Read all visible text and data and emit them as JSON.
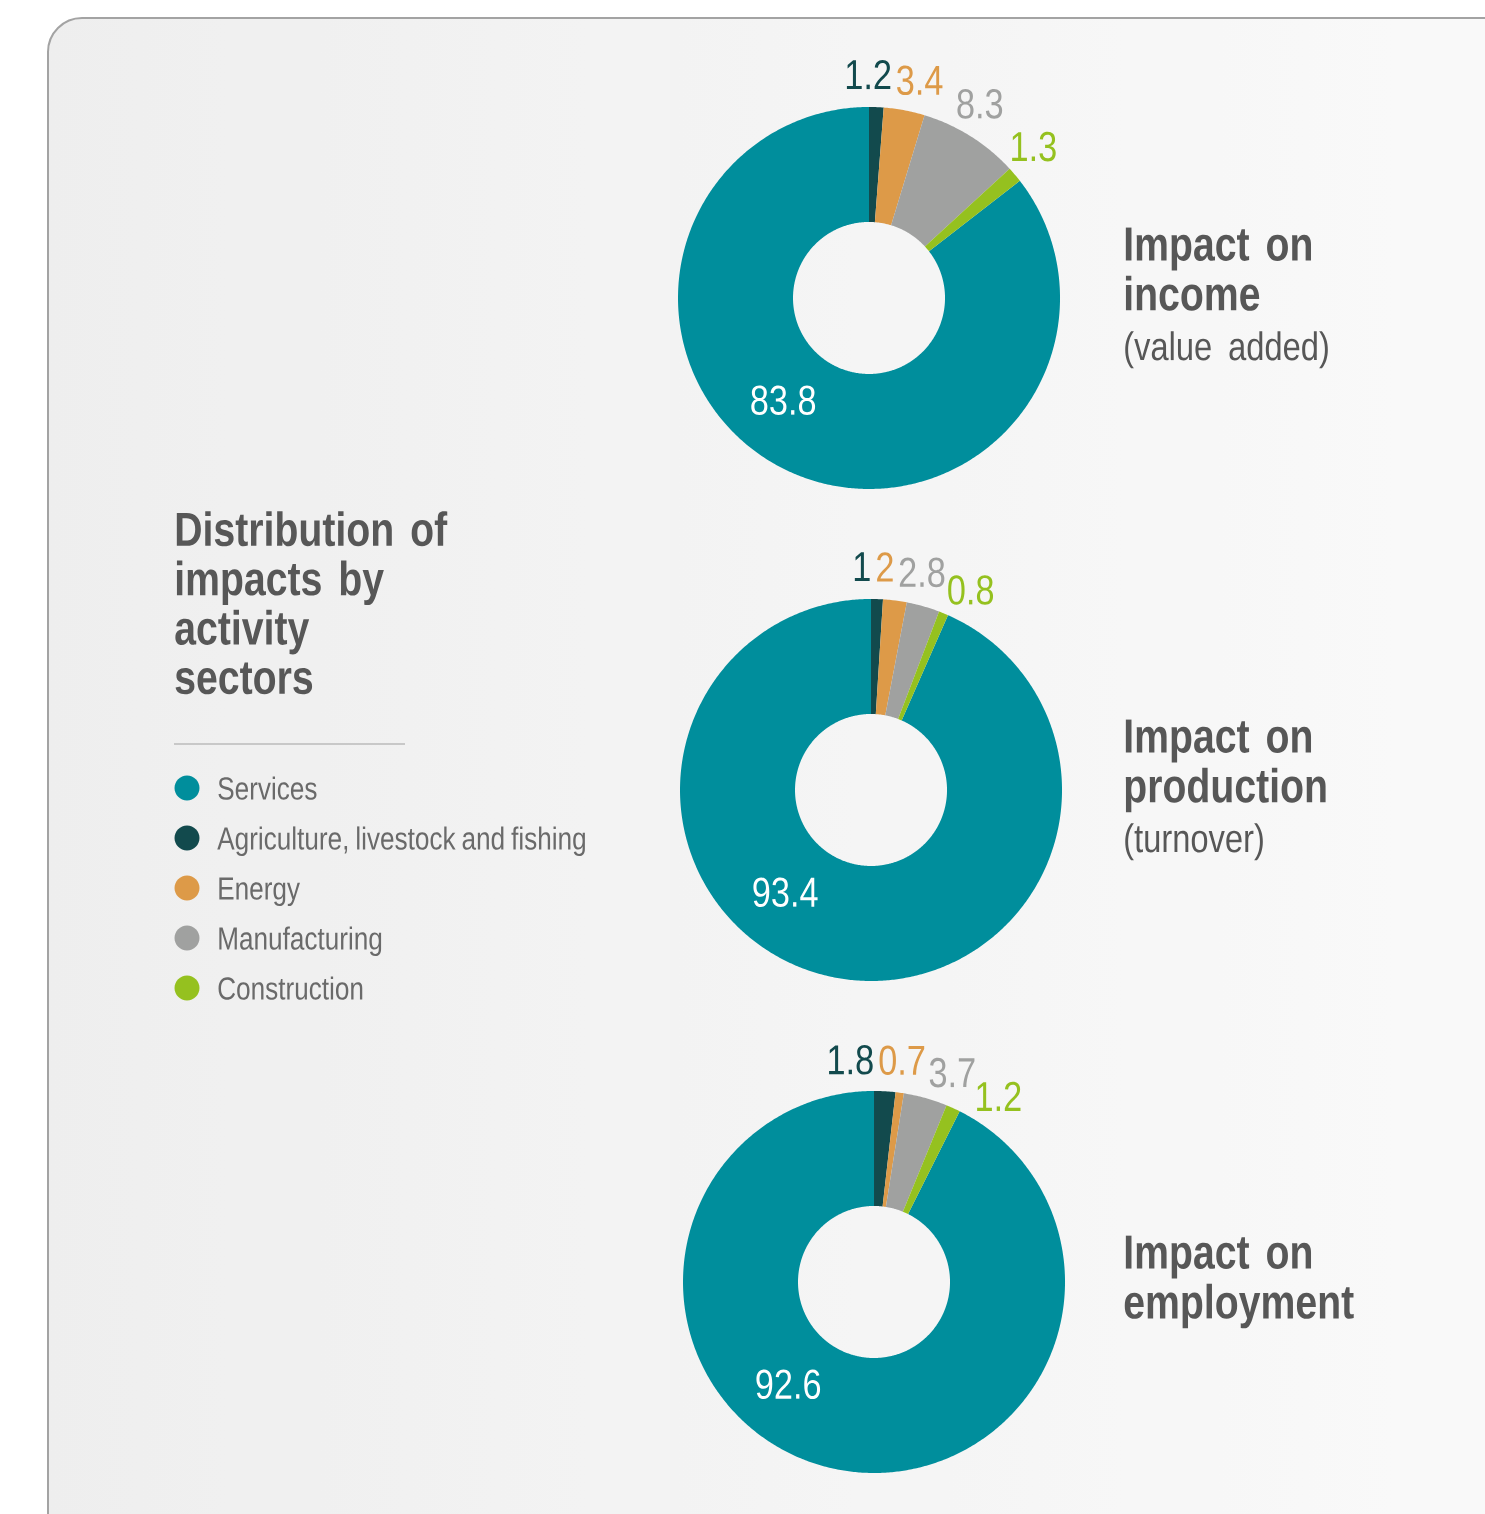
{
  "chart_data": [
    {
      "type": "donut",
      "title": "Impact on income",
      "subtitle": "(value added)",
      "categories": [
        null,
        null,
        null,
        null,
        null
      ],
      "values": [
        83.8,
        1.2,
        3.4,
        8.3,
        1.3
      ],
      "colors": [
        "#008e9c",
        "#124a4d",
        "#dd9a48",
        "#a0a1a0",
        "#95c11f"
      ],
      "data_labels": true
    },
    {
      "type": "donut",
      "title": "Impact on production",
      "subtitle": "(turnover)",
      "categories": [
        "Services",
        "Agriculture, livestock and fishing",
        "Energy",
        "Manufacturing",
        "Construction"
      ],
      "values": [
        93.4,
        1,
        2,
        2.8,
        0.8
      ],
      "colors": [
        "#008e9c",
        "#124a4d",
        "#dd9a48",
        "#a0a1a0",
        "#95c11f"
      ],
      "data_labels": true,
      "legend": "left",
      "legend_title": "Distribution of impacts by activity sectors"
    },
    {
      "type": "donut",
      "title": "Impact on employment",
      "categories": [
        null,
        null,
        null,
        null,
        null
      ],
      "values": [
        92.6,
        1.8,
        0.7,
        3.7,
        1.2
      ],
      "colors": [
        "#008e9c",
        "#124a4d",
        "#dd9a48",
        "#a0a1a0",
        "#95c11f"
      ],
      "data_labels": true
    }
  ]
}
